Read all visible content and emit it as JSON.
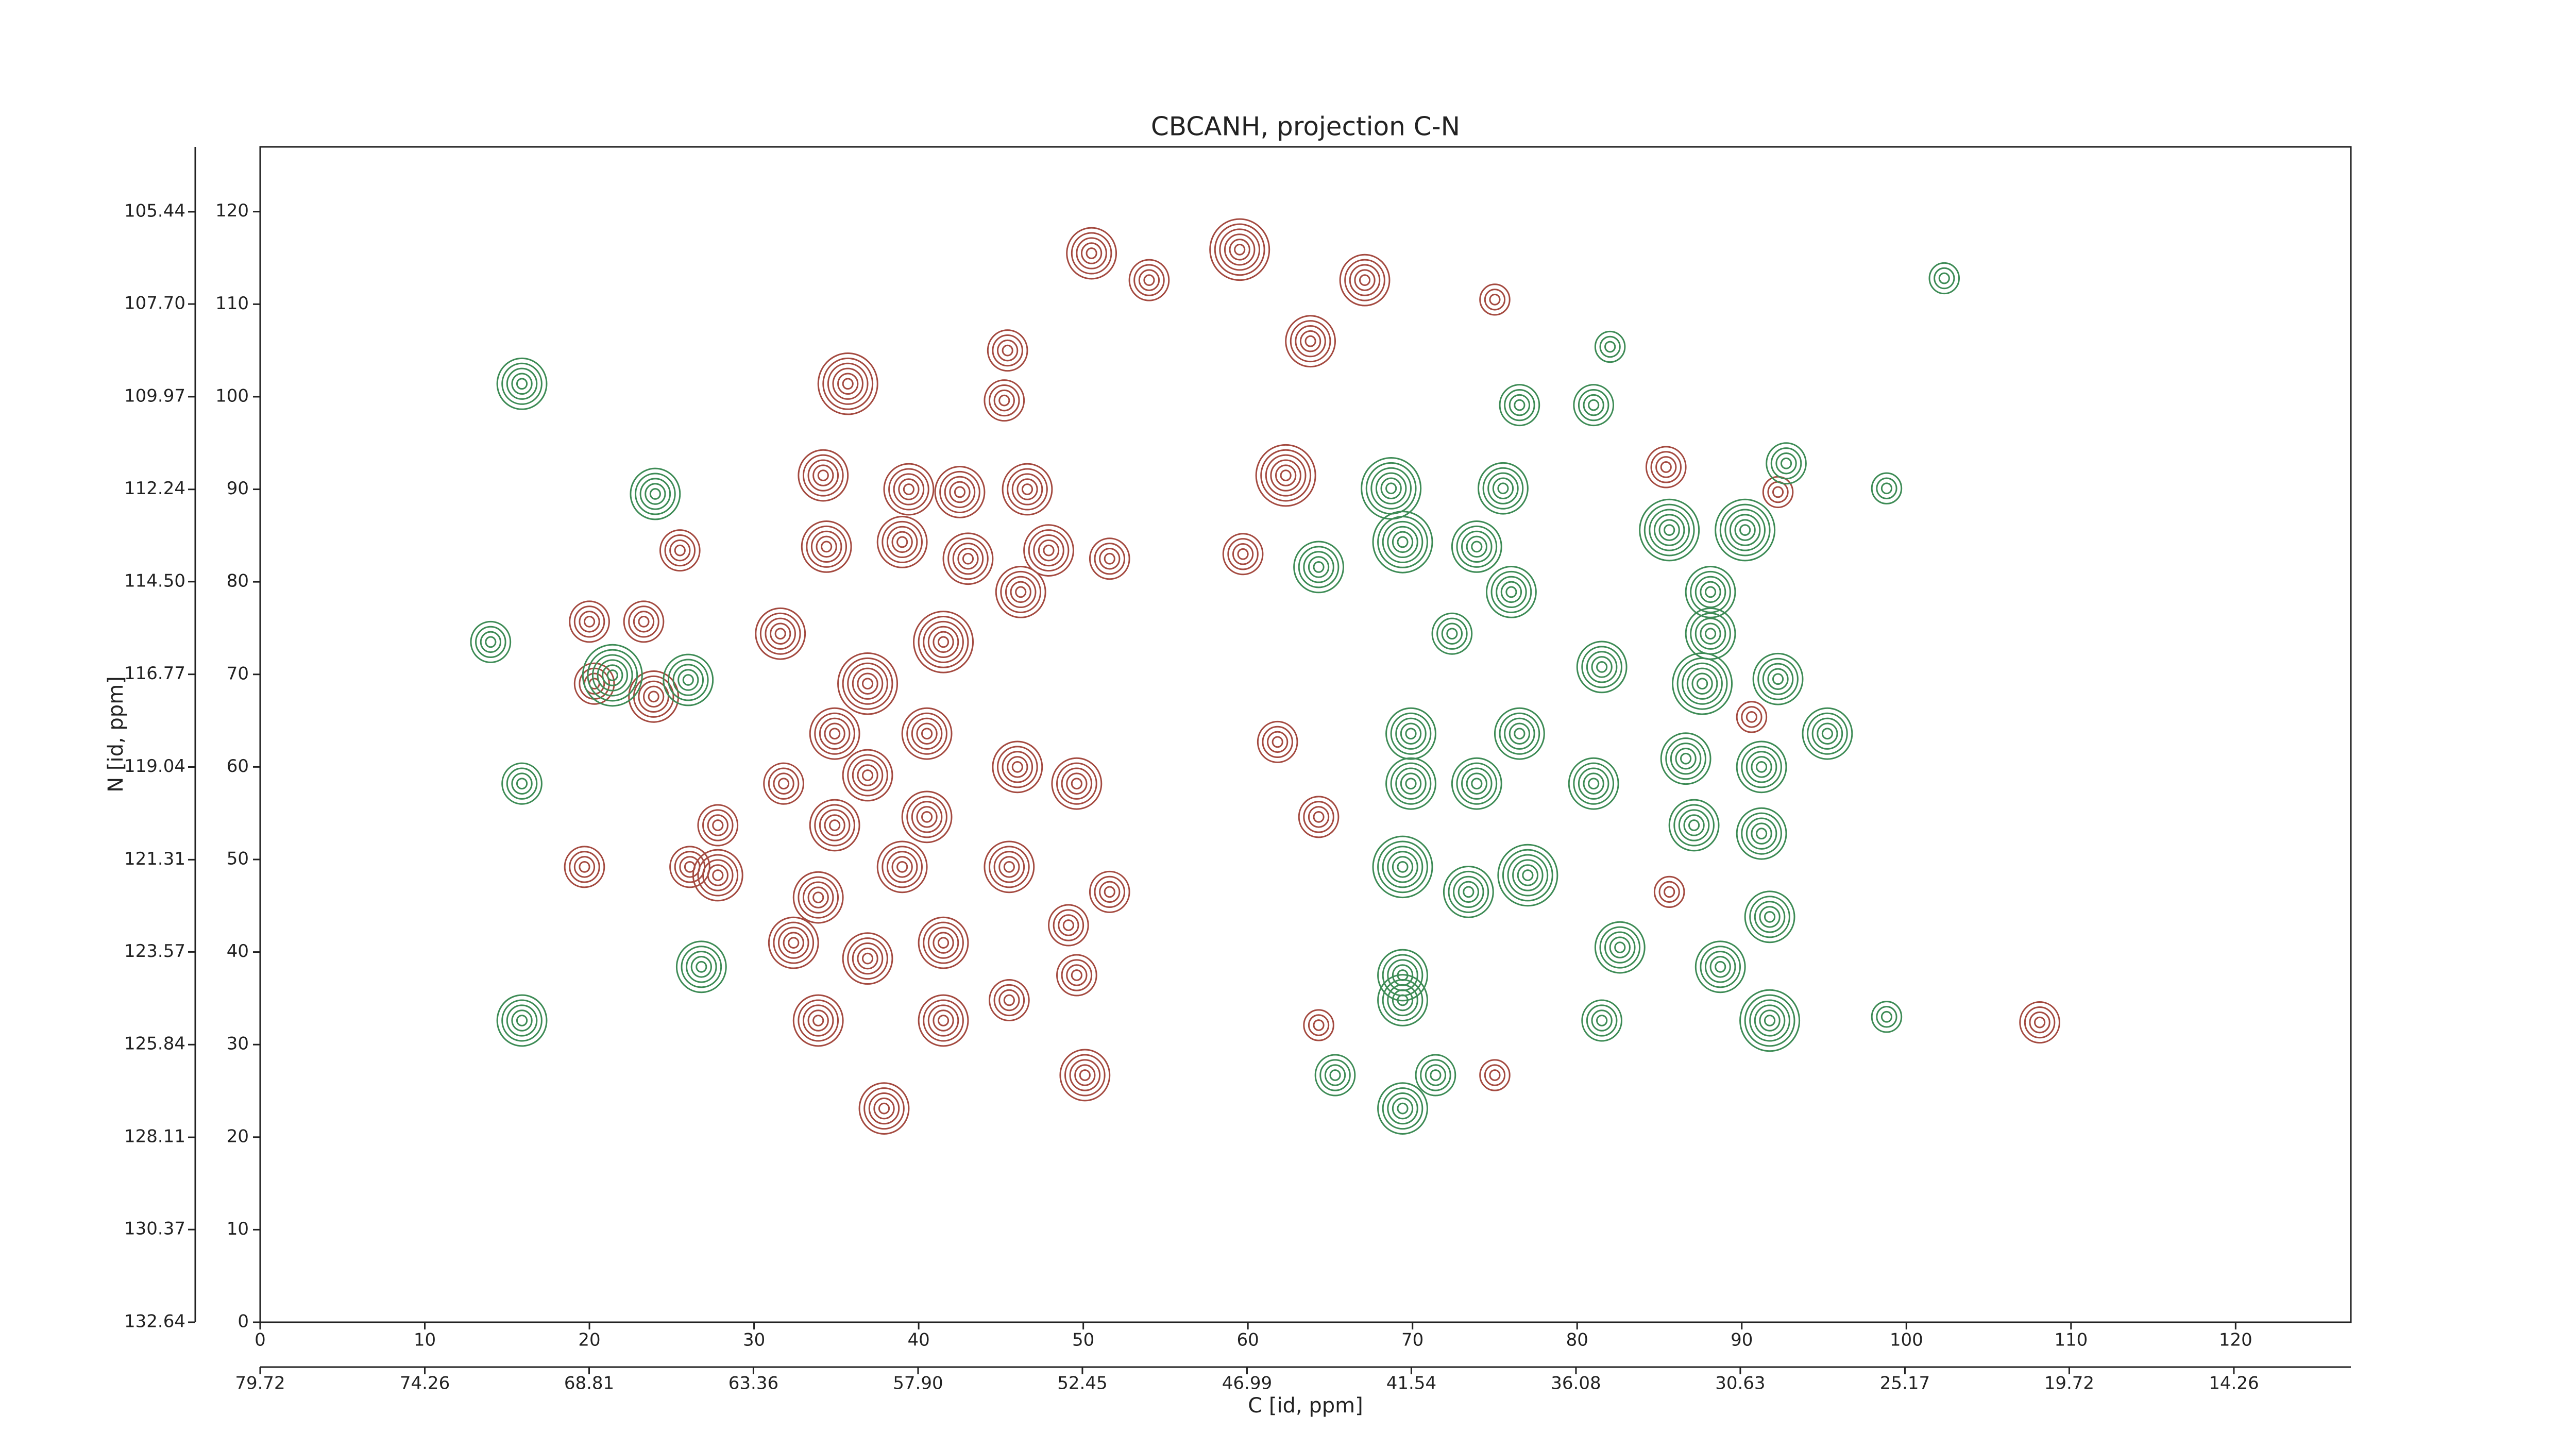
{
  "chart_data": {
    "type": "contour",
    "title": "CBCANH, projection C-N",
    "xlabel": "C [id, ppm]",
    "ylabel": "N [id, ppm]",
    "xlim": [
      0,
      127
    ],
    "ylim": [
      0,
      127
    ],
    "xticks": [
      0,
      10,
      20,
      30,
      40,
      50,
      60,
      70,
      80,
      90,
      100,
      110,
      120
    ],
    "yticks": [
      0,
      10,
      20,
      30,
      40,
      50,
      60,
      70,
      80,
      90,
      100,
      110,
      120
    ],
    "x2lim": [
      79.72,
      10.38
    ],
    "x2ticks": [
      79.72,
      74.26,
      68.81,
      63.36,
      {
        "value": 57.9,
        "label": "57.90"
      },
      52.45,
      46.99,
      41.54,
      36.08,
      30.63,
      25.17,
      19.72,
      14.26
    ],
    "y2lim": [
      132.64,
      103.85
    ],
    "y2ticks": [
      132.64,
      130.37,
      128.11,
      125.84,
      123.57,
      121.31,
      119.04,
      116.77,
      {
        "value": 114.5,
        "label": "114.50"
      },
      112.24,
      109.97,
      {
        "value": 107.7,
        "label": "107.70"
      },
      105.44
    ],
    "series": [
      {
        "color": "#a44a40",
        "x": [
          50.5,
          59.5,
          67.1,
          54,
          35.7,
          45.4,
          45.2,
          63.8,
          34.2,
          39.4,
          42.5,
          46.6,
          62.3,
          85.4,
          34.4,
          39,
          43,
          47.9,
          51.6,
          46.2,
          59.7,
          25.5,
          20,
          23.3,
          31.6,
          36.9,
          41.5,
          40.5,
          23.9,
          20.3,
          34.9,
          36.9,
          46,
          49.6,
          31.8,
          27.8,
          34.9,
          40.5,
          45.5,
          19.7,
          27.8,
          33.9,
          39,
          51.6,
          32.4,
          36.9,
          41.5,
          49.1,
          49.6,
          33.9,
          41.5,
          45.5,
          50.1,
          37.9,
          26.1,
          61.8,
          64.3,
          64.3,
          108.1,
          75,
          92.2,
          90.6,
          85.6,
          75
        ],
        "y": [
          115.5,
          115.9,
          112.6,
          112.6,
          101.4,
          105,
          99.6,
          106,
          91.5,
          90,
          89.7,
          90,
          91.5,
          92.4,
          83.8,
          84.3,
          82.5,
          83.4,
          82.5,
          78.9,
          83,
          83.4,
          75.7,
          75.7,
          74.4,
          69,
          73.5,
          63.6,
          67.6,
          69,
          63.6,
          59.1,
          60,
          58.2,
          58.2,
          53.7,
          53.7,
          54.6,
          49.2,
          49.2,
          48.3,
          45.9,
          49.2,
          46.5,
          41,
          39.3,
          41,
          42.9,
          37.5,
          32.6,
          32.6,
          34.8,
          26.7,
          23.1,
          49.2,
          62.7,
          54.6,
          32.1,
          32.4,
          26.7,
          89.7,
          65.4,
          46.5,
          110.5
        ],
        "levels": [
          5,
          6,
          5,
          4,
          6,
          4,
          4,
          5,
          5,
          5,
          5,
          5,
          6,
          4,
          5,
          5,
          5,
          5,
          4,
          5,
          4,
          4,
          4,
          4,
          5,
          6,
          6,
          5,
          5,
          4,
          5,
          5,
          5,
          5,
          4,
          4,
          5,
          5,
          5,
          4,
          5,
          5,
          5,
          4,
          5,
          5,
          5,
          4,
          4,
          5,
          5,
          4,
          5,
          5,
          4,
          4,
          4,
          3,
          4,
          3,
          3,
          3,
          3,
          3
        ]
      },
      {
        "color": "#3d8b55",
        "x": [
          15.9,
          24,
          14,
          21.4,
          26,
          15.9,
          26.8,
          15.9,
          76.5,
          81,
          82,
          102.3,
          92.7,
          98.8,
          68.7,
          75.5,
          64.3,
          69.4,
          73.9,
          76,
          85.6,
          90.2,
          88.1,
          88.1,
          72.4,
          81.5,
          87.6,
          92.2,
          95.2,
          69.9,
          76.5,
          81,
          86.6,
          91.2,
          69.9,
          73.9,
          87.1,
          91.2,
          69.4,
          77,
          73.4,
          91.7,
          82.6,
          69.4,
          88.7,
          91.7,
          81.5,
          69.4,
          65.3,
          69.4,
          71.4,
          98.8
        ],
        "y": [
          101.4,
          89.5,
          73.5,
          69.9,
          69.4,
          58.2,
          38.4,
          32.6,
          99.1,
          99.1,
          105.4,
          112.8,
          92.8,
          90.1,
          90.1,
          90.1,
          81.6,
          84.3,
          83.8,
          78.9,
          85.6,
          85.6,
          78.9,
          74.4,
          74.4,
          70.8,
          69,
          69.5,
          63.6,
          63.6,
          63.6,
          58.2,
          60.9,
          60,
          58.2,
          58.2,
          53.7,
          52.8,
          49.2,
          48.3,
          46.5,
          43.8,
          40.5,
          37.5,
          38.4,
          32.6,
          32.6,
          34.8,
          26.7,
          23.1,
          26.7,
          33
        ],
        "levels": [
          5,
          5,
          4,
          6,
          5,
          4,
          5,
          5,
          4,
          4,
          3,
          3,
          4,
          3,
          6,
          5,
          5,
          6,
          5,
          5,
          6,
          6,
          5,
          5,
          4,
          5,
          6,
          5,
          5,
          5,
          5,
          5,
          5,
          5,
          5,
          5,
          5,
          5,
          6,
          6,
          5,
          5,
          5,
          5,
          5,
          6,
          4,
          5,
          4,
          5,
          4,
          3
        ]
      }
    ]
  }
}
